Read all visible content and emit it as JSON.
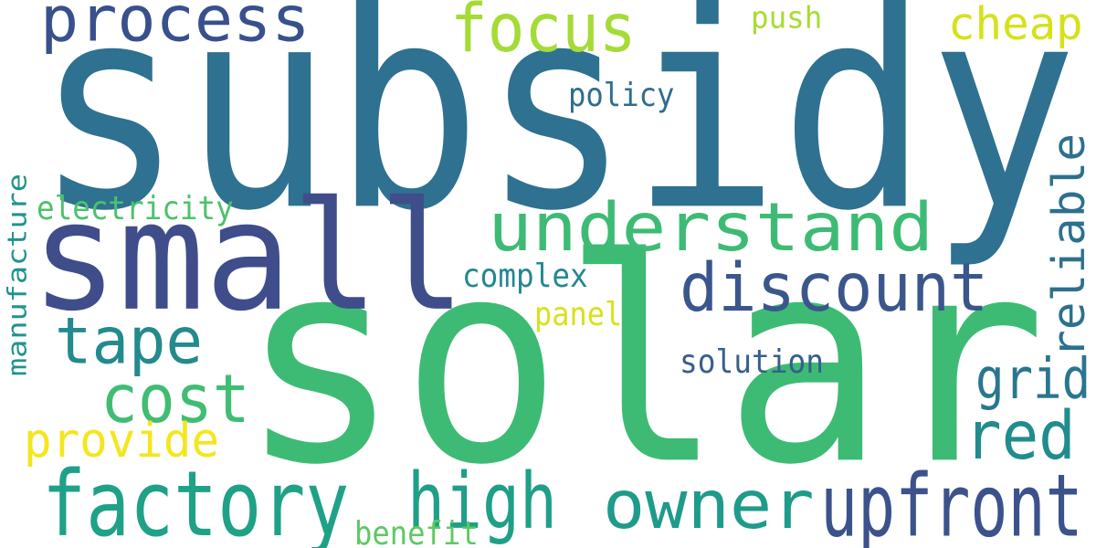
{
  "word_cloud": {
    "words": [
      {
        "id": "subsidy",
        "text": "subsidy",
        "color": "#2e7190"
      },
      {
        "id": "solar",
        "text": "solar",
        "color": "#3dbb74"
      },
      {
        "id": "small",
        "text": "small",
        "color": "#404d8b"
      },
      {
        "id": "process",
        "text": "process",
        "color": "#38508c"
      },
      {
        "id": "focus",
        "text": "focus",
        "color": "#a5db36"
      },
      {
        "id": "cheap",
        "text": "cheap",
        "color": "#d5e21a"
      },
      {
        "id": "push",
        "text": "push",
        "color": "#a8db34"
      },
      {
        "id": "policy",
        "text": "policy",
        "color": "#2f6d8e"
      },
      {
        "id": "understand",
        "text": "understand",
        "color": "#3dbb74"
      },
      {
        "id": "discount",
        "text": "discount",
        "color": "#3a568c"
      },
      {
        "id": "reliable",
        "text": "reliable",
        "color": "#2c718e"
      },
      {
        "id": "electricity",
        "text": "electricity",
        "color": "#4cc26c"
      },
      {
        "id": "manufacture",
        "text": "manufacture",
        "color": "#20948c"
      },
      {
        "id": "complex",
        "text": "complex",
        "color": "#23888e"
      },
      {
        "id": "tape",
        "text": "tape",
        "color": "#238a8d"
      },
      {
        "id": "panel",
        "text": "panel",
        "color": "#d8e219"
      },
      {
        "id": "cost",
        "text": "cost",
        "color": "#40bd72"
      },
      {
        "id": "solution",
        "text": "solution",
        "color": "#355f8d"
      },
      {
        "id": "grid",
        "text": "grid",
        "color": "#2a768e"
      },
      {
        "id": "red",
        "text": "red",
        "color": "#228c8d"
      },
      {
        "id": "provide",
        "text": "provide",
        "color": "#f4e61e"
      },
      {
        "id": "factory",
        "text": "factory",
        "color": "#1fa187"
      },
      {
        "id": "high",
        "text": "high",
        "color": "#1f9f88"
      },
      {
        "id": "owner",
        "text": "owner",
        "color": "#1e9b8a"
      },
      {
        "id": "upfront",
        "text": "upfront",
        "color": "#3b528b"
      },
      {
        "id": "benefit",
        "text": "benefit",
        "color": "#5ec962"
      }
    ]
  }
}
